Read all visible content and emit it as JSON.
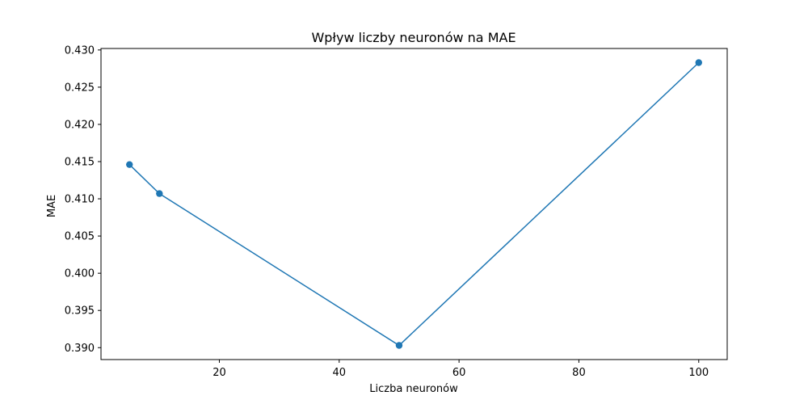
{
  "chart_data": {
    "type": "line",
    "title": "Wpływ liczby neuronów na MAE",
    "xlabel": "Liczba neuronów",
    "ylabel": "MAE",
    "x": [
      5,
      10,
      50,
      100
    ],
    "series": [
      {
        "values": [
          0.4146,
          0.4107,
          0.3903,
          0.4283
        ],
        "color": "#1f77b4",
        "marker": "circle"
      }
    ],
    "xlim": [
      0.25,
      104.75
    ],
    "ylim": [
      0.3884,
      0.4302
    ],
    "xticks": [
      20,
      40,
      60,
      80,
      100
    ],
    "xtick_labels": [
      "20",
      "40",
      "60",
      "80",
      "100"
    ],
    "yticks": [
      0.39,
      0.395,
      0.4,
      0.405,
      0.41,
      0.415,
      0.42,
      0.425,
      0.43
    ],
    "ytick_labels": [
      "0.390",
      "0.395",
      "0.400",
      "0.405",
      "0.410",
      "0.415",
      "0.420",
      "0.425",
      "0.430"
    ],
    "grid": false,
    "legend": "none"
  }
}
